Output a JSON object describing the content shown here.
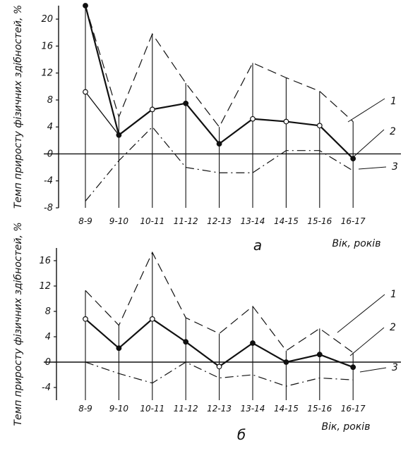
{
  "chart_data": [
    {
      "type": "line",
      "panel_label": "а",
      "ylabel": "Темп приросту фізичних здібностей, %",
      "xlabel": "Вік, років",
      "categories": [
        "8-9",
        "9-10",
        "10-11",
        "11-12",
        "12-13",
        "13-14",
        "14-15",
        "15-16",
        "16-17"
      ],
      "ylim": [
        -8,
        22
      ],
      "yticks": [
        "20",
        "16",
        "12",
        "8",
        "4",
        "0",
        "-4",
        "-8"
      ],
      "baseline": 0,
      "series": [
        {
          "name": "1",
          "style": "dashed",
          "values": [
            22,
            5.5,
            17.8,
            10.5,
            4,
            13.5,
            11.3,
            9.3,
            4.8
          ]
        },
        {
          "name": "2",
          "style": "solid",
          "values": [
            22,
            2.8,
            6.6,
            7.5,
            1.5,
            5.2,
            4.8,
            4.2,
            -0.7
          ]
        },
        {
          "name": "3",
          "style": "dashdot",
          "values": [
            -7,
            -1,
            4,
            -2,
            -2.8,
            -2.8,
            0.5,
            0.5,
            -2.5
          ]
        }
      ],
      "hollow_markers": [
        {
          "series": 1,
          "index": 0,
          "value": 9.2
        }
      ],
      "markers": {
        "filled": "#111111",
        "hollow": "#ffffff"
      }
    },
    {
      "type": "line",
      "panel_label": "б",
      "ylabel": "Темп приросту фізичних здібностей, %",
      "xlabel": "Вік, років",
      "categories": [
        "8-9",
        "9-10",
        "10-11",
        "11-12",
        "12-13",
        "13-14",
        "14-15",
        "15-16",
        "16-17"
      ],
      "ylim": [
        -6,
        18
      ],
      "yticks": [
        "16",
        "12",
        "8",
        "4",
        "0",
        "-4"
      ],
      "baseline": 0,
      "series": [
        {
          "name": "1",
          "style": "dashed",
          "values": [
            11.3,
            5.8,
            17.3,
            7,
            4.5,
            8.8,
            1.8,
            5.3,
            1.5
          ]
        },
        {
          "name": "2",
          "style": "solid",
          "values": [
            6.8,
            2.2,
            6.8,
            3.2,
            -0.7,
            3,
            0,
            1.2,
            -0.8
          ]
        },
        {
          "name": "3",
          "style": "dashdot",
          "values": [
            0,
            -1.8,
            -3.3,
            0,
            -2.5,
            -2,
            -3.8,
            -2.5,
            -2.8
          ]
        }
      ],
      "markers": {
        "filled": "#111111",
        "hollow": "#ffffff"
      }
    }
  ]
}
